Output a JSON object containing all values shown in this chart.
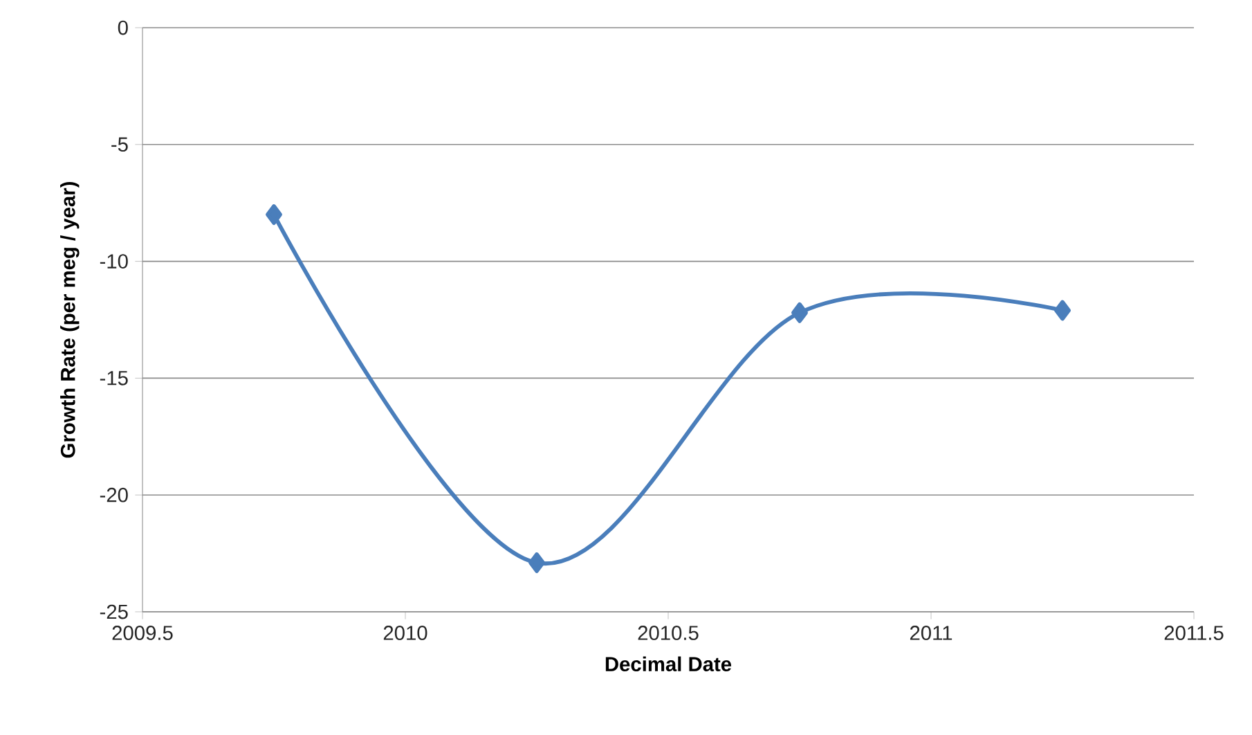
{
  "chart_data": {
    "type": "line",
    "xlabel": "Decimal Date",
    "ylabel": "Growth Rate (per meg / year)",
    "x": [
      2009.75,
      2010.25,
      2010.75,
      2011.25
    ],
    "series": [
      {
        "color": "#4a7ebb",
        "values": [
          -8.0,
          -22.9,
          -12.2,
          -12.1
        ]
      }
    ],
    "xlim": [
      2009.5,
      2011.5
    ],
    "xticks": [
      2009.5,
      2010,
      2010.5,
      2011,
      2011.5
    ],
    "ylim": [
      -25,
      0
    ],
    "yticks": [
      -25,
      -20,
      -15,
      -10,
      -5,
      0
    ],
    "grid": "y",
    "marker": "diamond",
    "line_style": "solid"
  }
}
